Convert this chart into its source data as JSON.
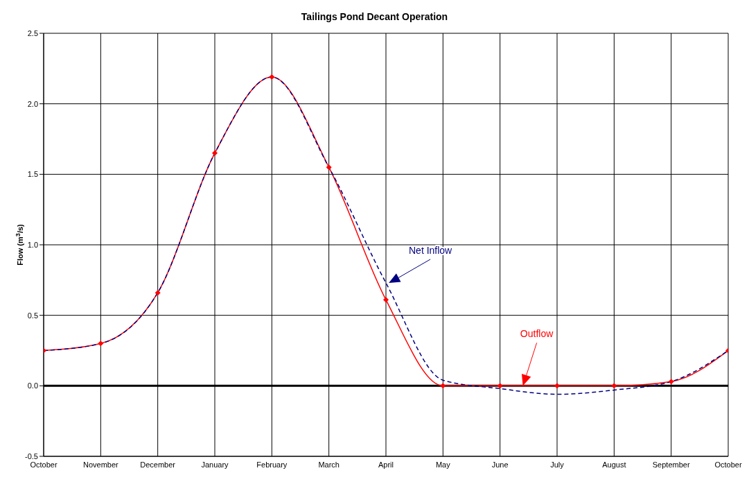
{
  "chart_data": {
    "type": "line",
    "title": "Tailings Pond Decant Operation",
    "ylabel": "Flow (m$^{3}$/s)",
    "categories": [
      "October",
      "November",
      "December",
      "January",
      "February",
      "March",
      "April",
      "May",
      "June",
      "July",
      "August",
      "September",
      "October"
    ],
    "series": [
      {
        "name": "Outflow",
        "color": "#ff0000",
        "marker": "diamond",
        "line_style": "solid",
        "values": [
          0.25,
          0.3,
          0.66,
          1.65,
          2.19,
          1.55,
          0.61,
          0,
          0,
          0,
          0,
          0.03,
          0.25
        ]
      },
      {
        "name": "Net Inflow",
        "color": "#000080",
        "marker": "none",
        "line_style": "dashed",
        "values": [
          0.25,
          0.3,
          0.66,
          1.65,
          2.19,
          1.55,
          0.73,
          0.04,
          -0.02,
          -0.06,
          -0.03,
          0.03,
          0.25
        ]
      }
    ],
    "ylim": [
      -0.5,
      2.5
    ],
    "yticks": [
      {
        "value": -0.5,
        "label": "-0.5"
      },
      {
        "value": 0,
        "label": "0.0"
      },
      {
        "value": 0.5,
        "label": "0.5"
      },
      {
        "value": 1,
        "label": "1.0"
      },
      {
        "value": 1.5,
        "label": "1.5"
      },
      {
        "value": 2,
        "label": "2.0"
      },
      {
        "value": 2.5,
        "label": "2.5"
      }
    ],
    "ref_lines": [
      {
        "axis": "y",
        "value": 0,
        "color": "#000000"
      }
    ],
    "grid": true
  }
}
